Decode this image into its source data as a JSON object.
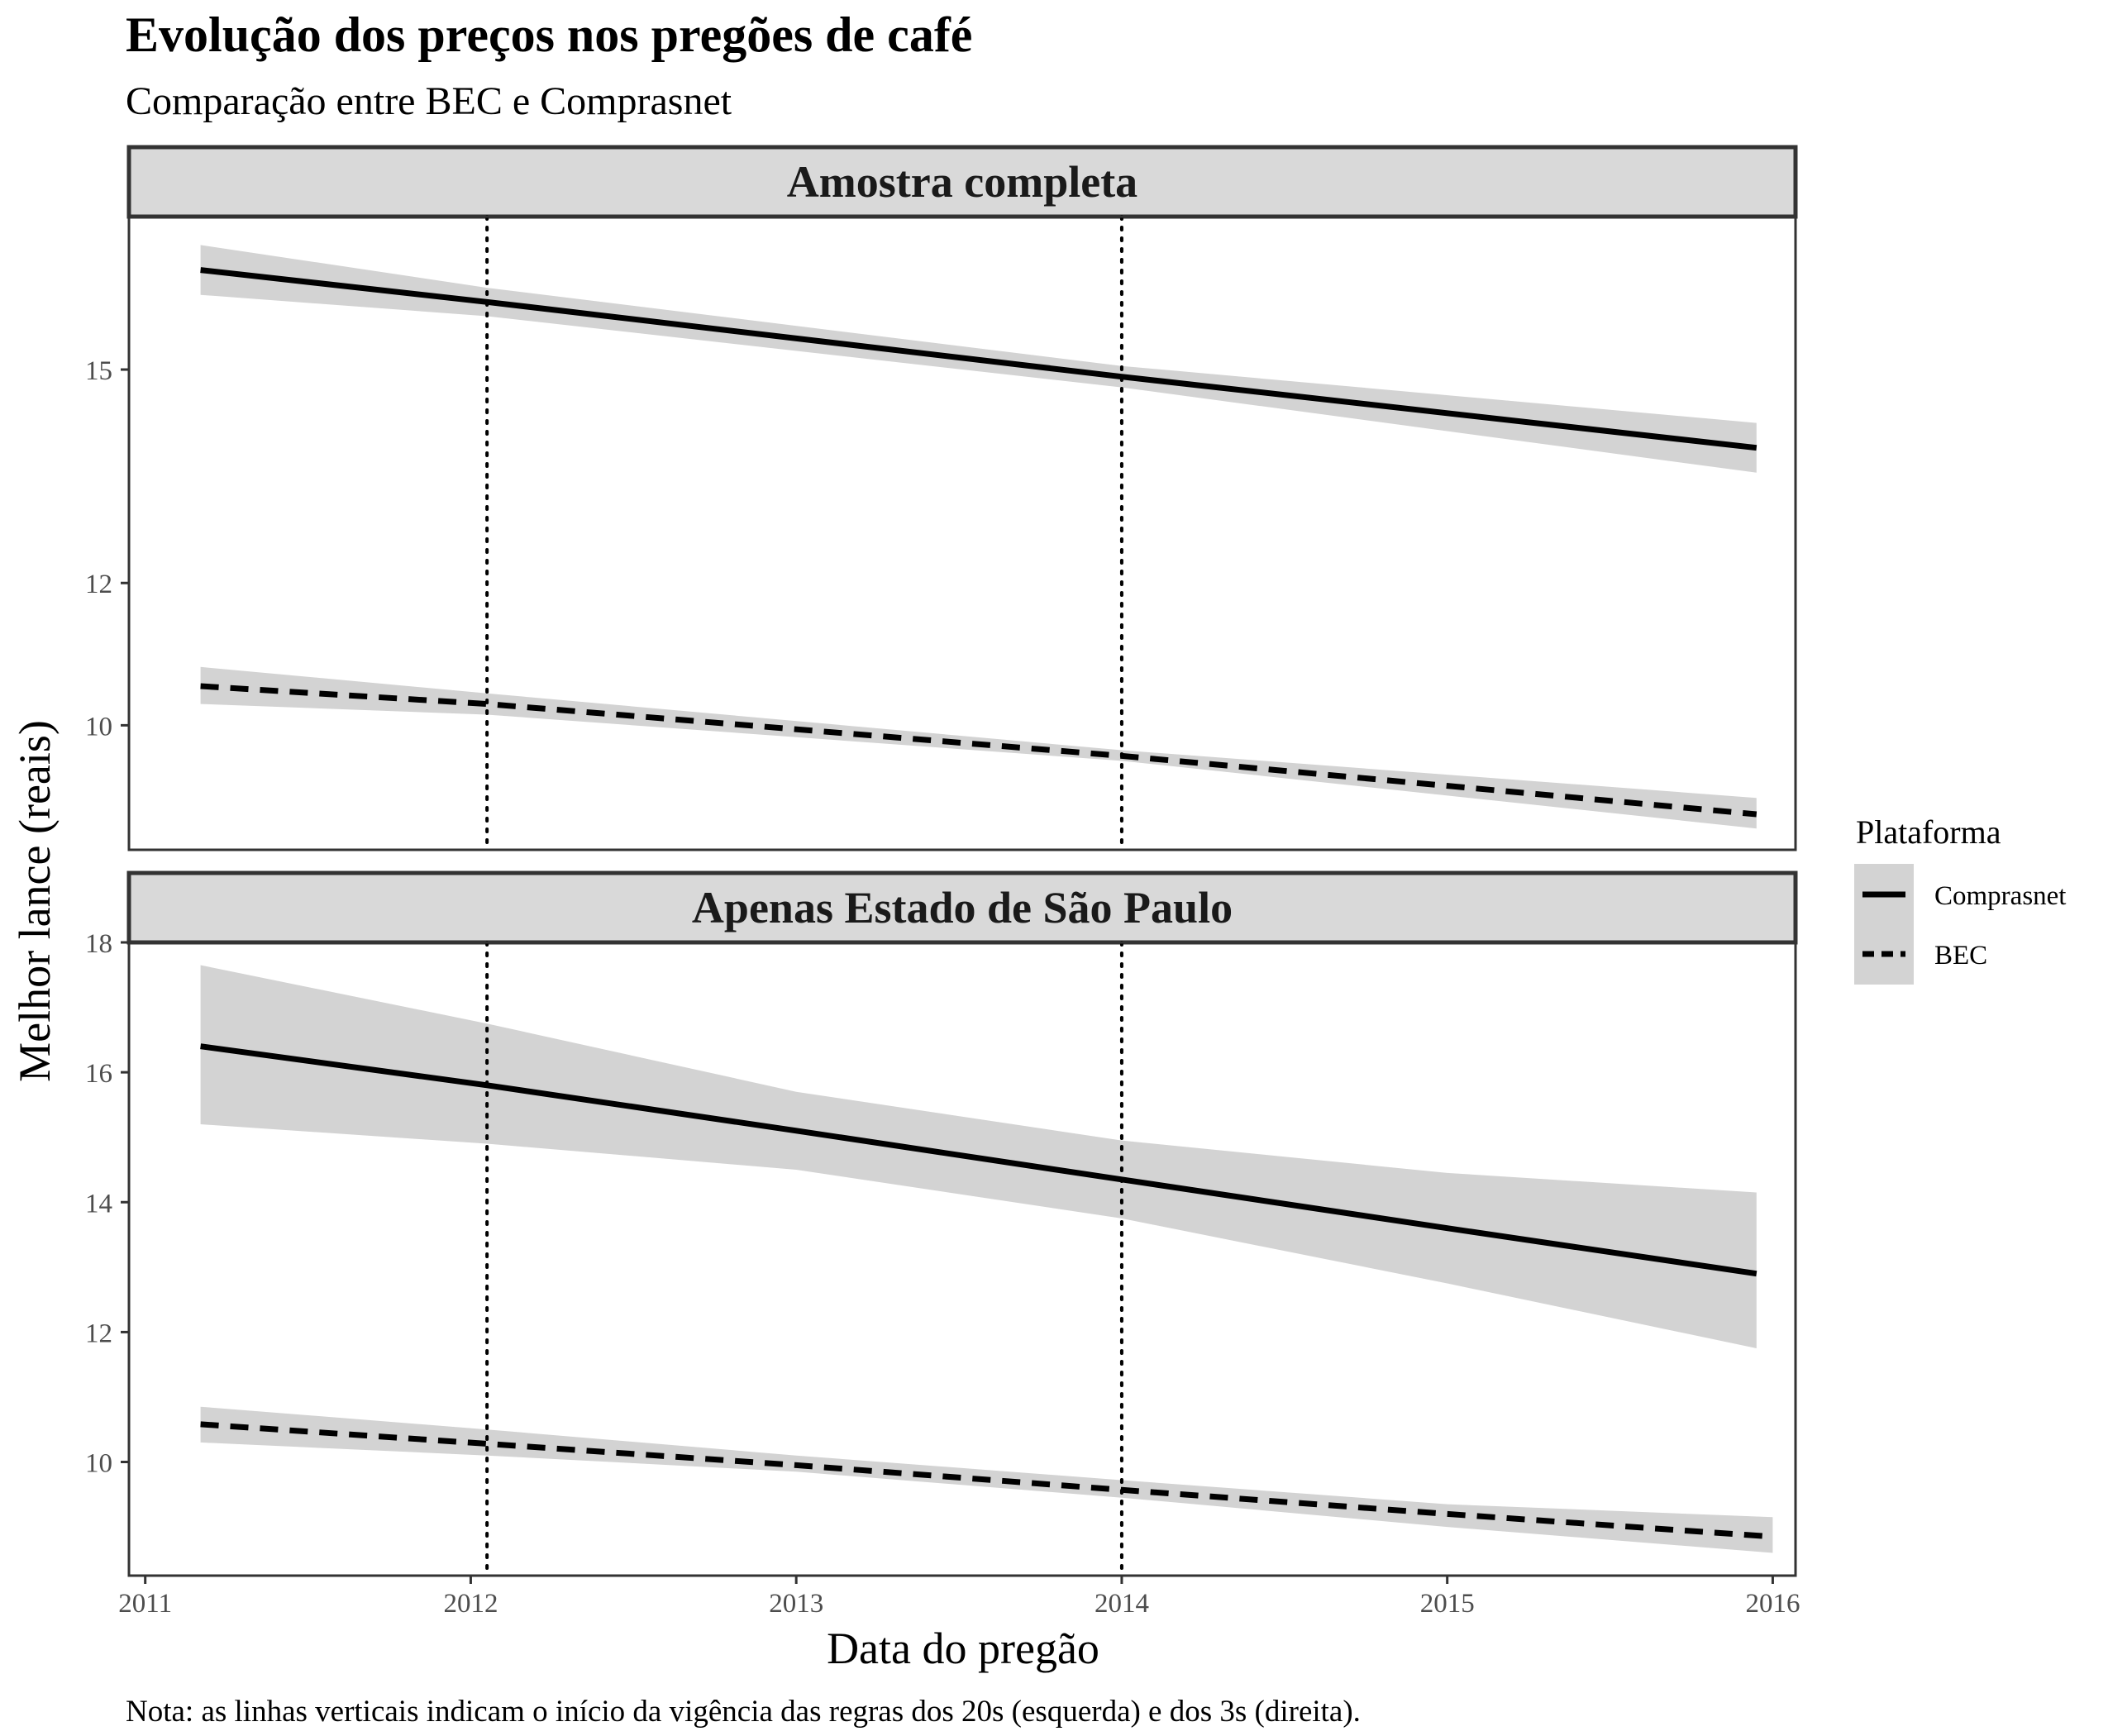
{
  "title": "Evolução dos preços nos pregões de café",
  "subtitle": "Comparação entre BEC e Comprasnet",
  "caption": "Nota: as linhas verticais indicam o início da vigência das regras dos 20s (esquerda) e dos 3s (direita).",
  "chart_data": {
    "type": "line",
    "xlabel": "Data do pregão",
    "ylabel": "Melhor lance (reais)",
    "x_ticks": [
      2011,
      2012,
      2013,
      2014,
      2015,
      2016
    ],
    "xlim": [
      2010.95,
      2016.07
    ],
    "vlines": [
      2012.05,
      2014.0
    ],
    "grid": false,
    "legend": {
      "title": "Plataforma",
      "position": "right",
      "entries": [
        {
          "name": "Comprasnet",
          "linestyle": "solid"
        },
        {
          "name": "BEC",
          "linestyle": "dashed"
        }
      ]
    },
    "panels": [
      {
        "strip": "Amostra completa",
        "ylim": [
          8.25,
          17.15
        ],
        "y_ticks": [
          10,
          12,
          15
        ],
        "series": [
          {
            "name": "Comprasnet",
            "linestyle": "solid",
            "x": [
              2011.17,
              2012.05,
              2014.0,
              2015.95
            ],
            "y": [
              16.4,
              15.95,
              14.9,
              13.9
            ],
            "lower": [
              16.05,
              15.75,
              14.75,
              13.55
            ],
            "upper": [
              16.75,
              16.15,
              15.05,
              14.25
            ]
          },
          {
            "name": "BEC",
            "linestyle": "dashed",
            "x": [
              2011.17,
              2012.05,
              2014.0,
              2015.95
            ],
            "y": [
              10.55,
              10.3,
              9.57,
              8.75
            ],
            "lower": [
              10.3,
              10.15,
              9.5,
              8.55
            ],
            "upper": [
              10.82,
              10.45,
              9.65,
              8.98
            ]
          }
        ]
      },
      {
        "strip": "Apenas Estado de São Paulo",
        "ylim": [
          8.25,
          18.0
        ],
        "y_ticks": [
          10,
          12,
          14,
          16,
          18
        ],
        "series": [
          {
            "name": "Comprasnet",
            "linestyle": "solid",
            "x": [
              2011.17,
              2012.05,
              2013.0,
              2014.0,
              2015.0,
              2015.95
            ],
            "y": [
              16.4,
              15.8,
              15.1,
              14.35,
              13.6,
              12.9
            ],
            "lower": [
              15.2,
              14.9,
              14.5,
              13.75,
              12.75,
              11.75
            ],
            "upper": [
              17.65,
              16.75,
              15.7,
              14.95,
              14.45,
              14.15
            ]
          },
          {
            "name": "BEC",
            "linestyle": "dashed",
            "x": [
              2011.17,
              2012.05,
              2013.0,
              2014.0,
              2015.0,
              2016.0
            ],
            "y": [
              10.58,
              10.28,
              9.95,
              9.57,
              9.2,
              8.85
            ],
            "lower": [
              10.3,
              10.1,
              9.85,
              9.45,
              9.0,
              8.6
            ],
            "upper": [
              10.85,
              10.5,
              10.1,
              9.72,
              9.35,
              9.15
            ]
          }
        ]
      }
    ]
  },
  "colors": {
    "ribbon": "#d3d3d3",
    "strip_fill": "#d9d9d9",
    "strip_border": "#333333",
    "panel_border": "#333333",
    "line": "#000000",
    "tick_text": "#4d4d4d"
  }
}
